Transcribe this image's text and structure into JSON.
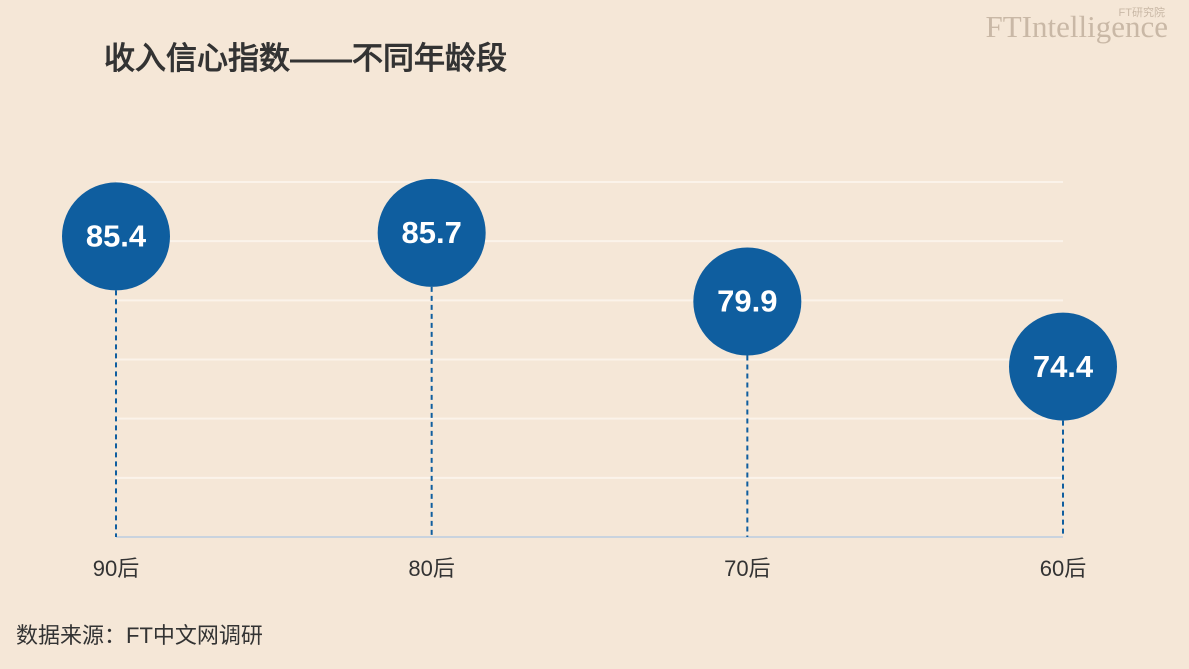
{
  "chart_data": {
    "type": "lollipop",
    "title": "收入信心指数——不同年龄段",
    "categories": [
      "90后",
      "80后",
      "70后",
      "60后"
    ],
    "values": [
      85.4,
      85.7,
      79.9,
      74.4
    ],
    "color": "#0f5e9f",
    "ylim": [
      60,
      90
    ],
    "yticks": [
      60,
      65,
      70,
      75,
      80,
      85,
      90
    ],
    "grid": true,
    "source": "数据来源：FT中文网调研",
    "logo": "FTIntelligence",
    "logo_sub": "FT研究院"
  }
}
